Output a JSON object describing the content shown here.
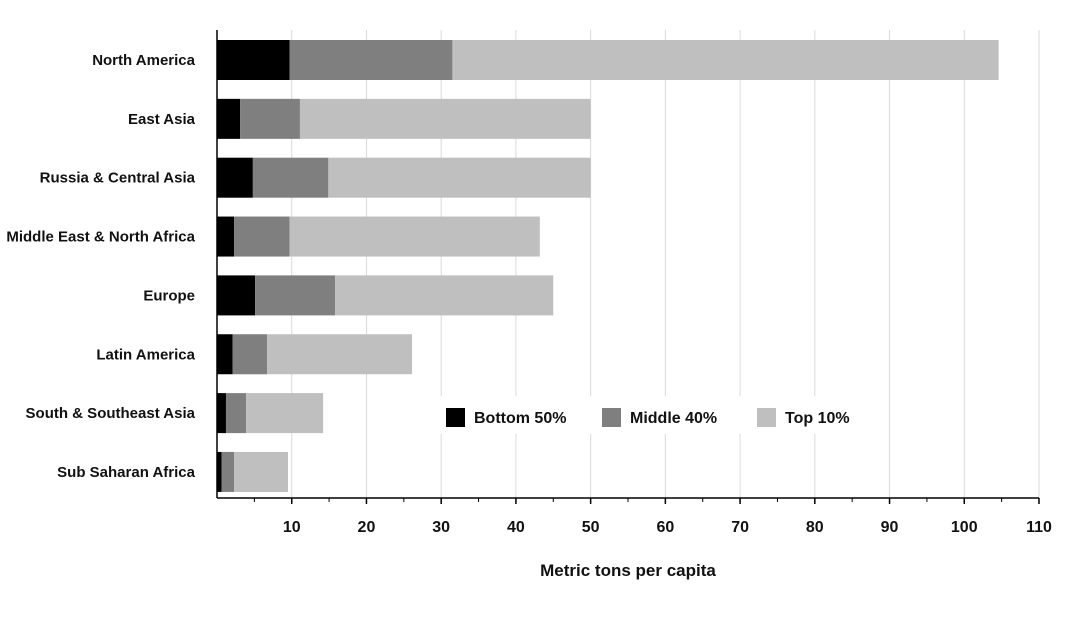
{
  "chart_data": {
    "type": "bar",
    "orientation": "horizontal",
    "stacked": true,
    "title": "",
    "xlabel": "Metric tons per capita",
    "ylabel": "",
    "xlim": [
      0,
      110
    ],
    "xticks": [
      10,
      20,
      30,
      40,
      50,
      60,
      70,
      80,
      90,
      100,
      110
    ],
    "grid": true,
    "legend_position": "bottom-center",
    "categories": [
      "North America",
      "East Asia",
      "Russia & Central Asia",
      "Middle East & North Africa",
      "Europe",
      "Latin America",
      "South & Southeast Asia",
      "Sub Saharan Africa"
    ],
    "series": [
      {
        "name": "Bottom 50%",
        "color": "#000000",
        "values": [
          9.7,
          3.1,
          4.8,
          2.3,
          5.1,
          2.1,
          1.2,
          0.6
        ]
      },
      {
        "name": "Middle 40%",
        "color": "#7f7f7f",
        "values": [
          21.8,
          8.0,
          10.1,
          7.4,
          10.7,
          4.6,
          2.7,
          1.7
        ]
      },
      {
        "name": "Top 10%",
        "color": "#bfbfbf",
        "values": [
          73.1,
          38.9,
          35.1,
          33.5,
          29.2,
          19.4,
          10.3,
          7.2
        ]
      }
    ]
  }
}
